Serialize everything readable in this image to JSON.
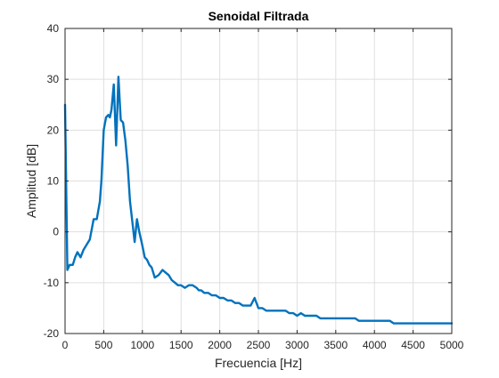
{
  "chart_data": {
    "type": "line",
    "title": "Senoidal Filtrada",
    "xlabel": "Frecuencia [Hz]",
    "ylabel": "Amplitud [dB]",
    "xlim": [
      0,
      5000
    ],
    "ylim": [
      -20,
      40
    ],
    "xticks": [
      0,
      500,
      1000,
      1500,
      2000,
      2500,
      3000,
      3500,
      4000,
      4500,
      5000
    ],
    "yticks": [
      -20,
      -10,
      0,
      10,
      20,
      30,
      40
    ],
    "grid": true,
    "colors": {
      "line": "#0072bd",
      "grid": "#dfdfdf",
      "axes": "#262626"
    },
    "series": [
      {
        "x": [
          0,
          30,
          60,
          100,
          130,
          160,
          200,
          240,
          280,
          320,
          370,
          410,
          450,
          470,
          500,
          530,
          560,
          580,
          600,
          630,
          660,
          690,
          720,
          750,
          780,
          810,
          840,
          870,
          900,
          930,
          960,
          990,
          1010,
          1030,
          1060,
          1090,
          1120,
          1160,
          1210,
          1260,
          1300,
          1340,
          1380,
          1420,
          1460,
          1500,
          1550,
          1600,
          1650,
          1700,
          1730,
          1760,
          1800,
          1850,
          1900,
          1950,
          2000,
          2050,
          2100,
          2150,
          2200,
          2250,
          2300,
          2350,
          2400,
          2450,
          2500,
          2550,
          2600,
          2650,
          2700,
          2750,
          2800,
          2850,
          2900,
          2950,
          3000,
          3050,
          3100,
          3150,
          3200,
          3250,
          3300,
          3350,
          3400,
          3450,
          3500,
          3550,
          3600,
          3650,
          3700,
          3750,
          3800,
          3850,
          3900,
          3950,
          4000,
          4050,
          4100,
          4150,
          4200,
          4250,
          4300,
          4350,
          4400,
          4450,
          4500,
          4550,
          4600,
          4650,
          4700,
          4750,
          4800,
          4850,
          4900,
          4950,
          5000
        ],
        "y": [
          25,
          -7.5,
          -6.5,
          -6.5,
          -5,
          -4,
          -5,
          -3.5,
          -2.5,
          -1.5,
          2.5,
          2.5,
          6,
          10,
          20,
          22.5,
          23,
          22.5,
          24,
          29,
          17,
          30.5,
          22,
          21.5,
          18,
          13,
          6,
          2,
          -2,
          2.5,
          0,
          -2,
          -3.5,
          -5,
          -5.5,
          -6.5,
          -7,
          -9,
          -8.5,
          -7.5,
          -8,
          -8.5,
          -9.5,
          -10,
          -10.5,
          -10.5,
          -11,
          -10.5,
          -10.5,
          -11,
          -11.5,
          -11.5,
          -12,
          -12,
          -12.5,
          -12.5,
          -13,
          -13,
          -13.5,
          -13.5,
          -14,
          -14,
          -14.5,
          -14.5,
          -14.5,
          -13,
          -15,
          -15,
          -15.5,
          -15.5,
          -15.5,
          -15.5,
          -15.5,
          -15.5,
          -16,
          -16,
          -16.5,
          -16,
          -16.5,
          -16.5,
          -16.5,
          -16.5,
          -17,
          -17,
          -17,
          -17,
          -17,
          -17,
          -17,
          -17,
          -17,
          -17,
          -17.5,
          -17.5,
          -17.5,
          -17.5,
          -17.5,
          -17.5,
          -17.5,
          -17.5,
          -17.5,
          -18,
          -18,
          -18,
          -18,
          -18,
          -18,
          -18,
          -18,
          -18,
          -18,
          -18,
          -18,
          -18,
          -18,
          -18,
          -18
        ]
      }
    ]
  }
}
